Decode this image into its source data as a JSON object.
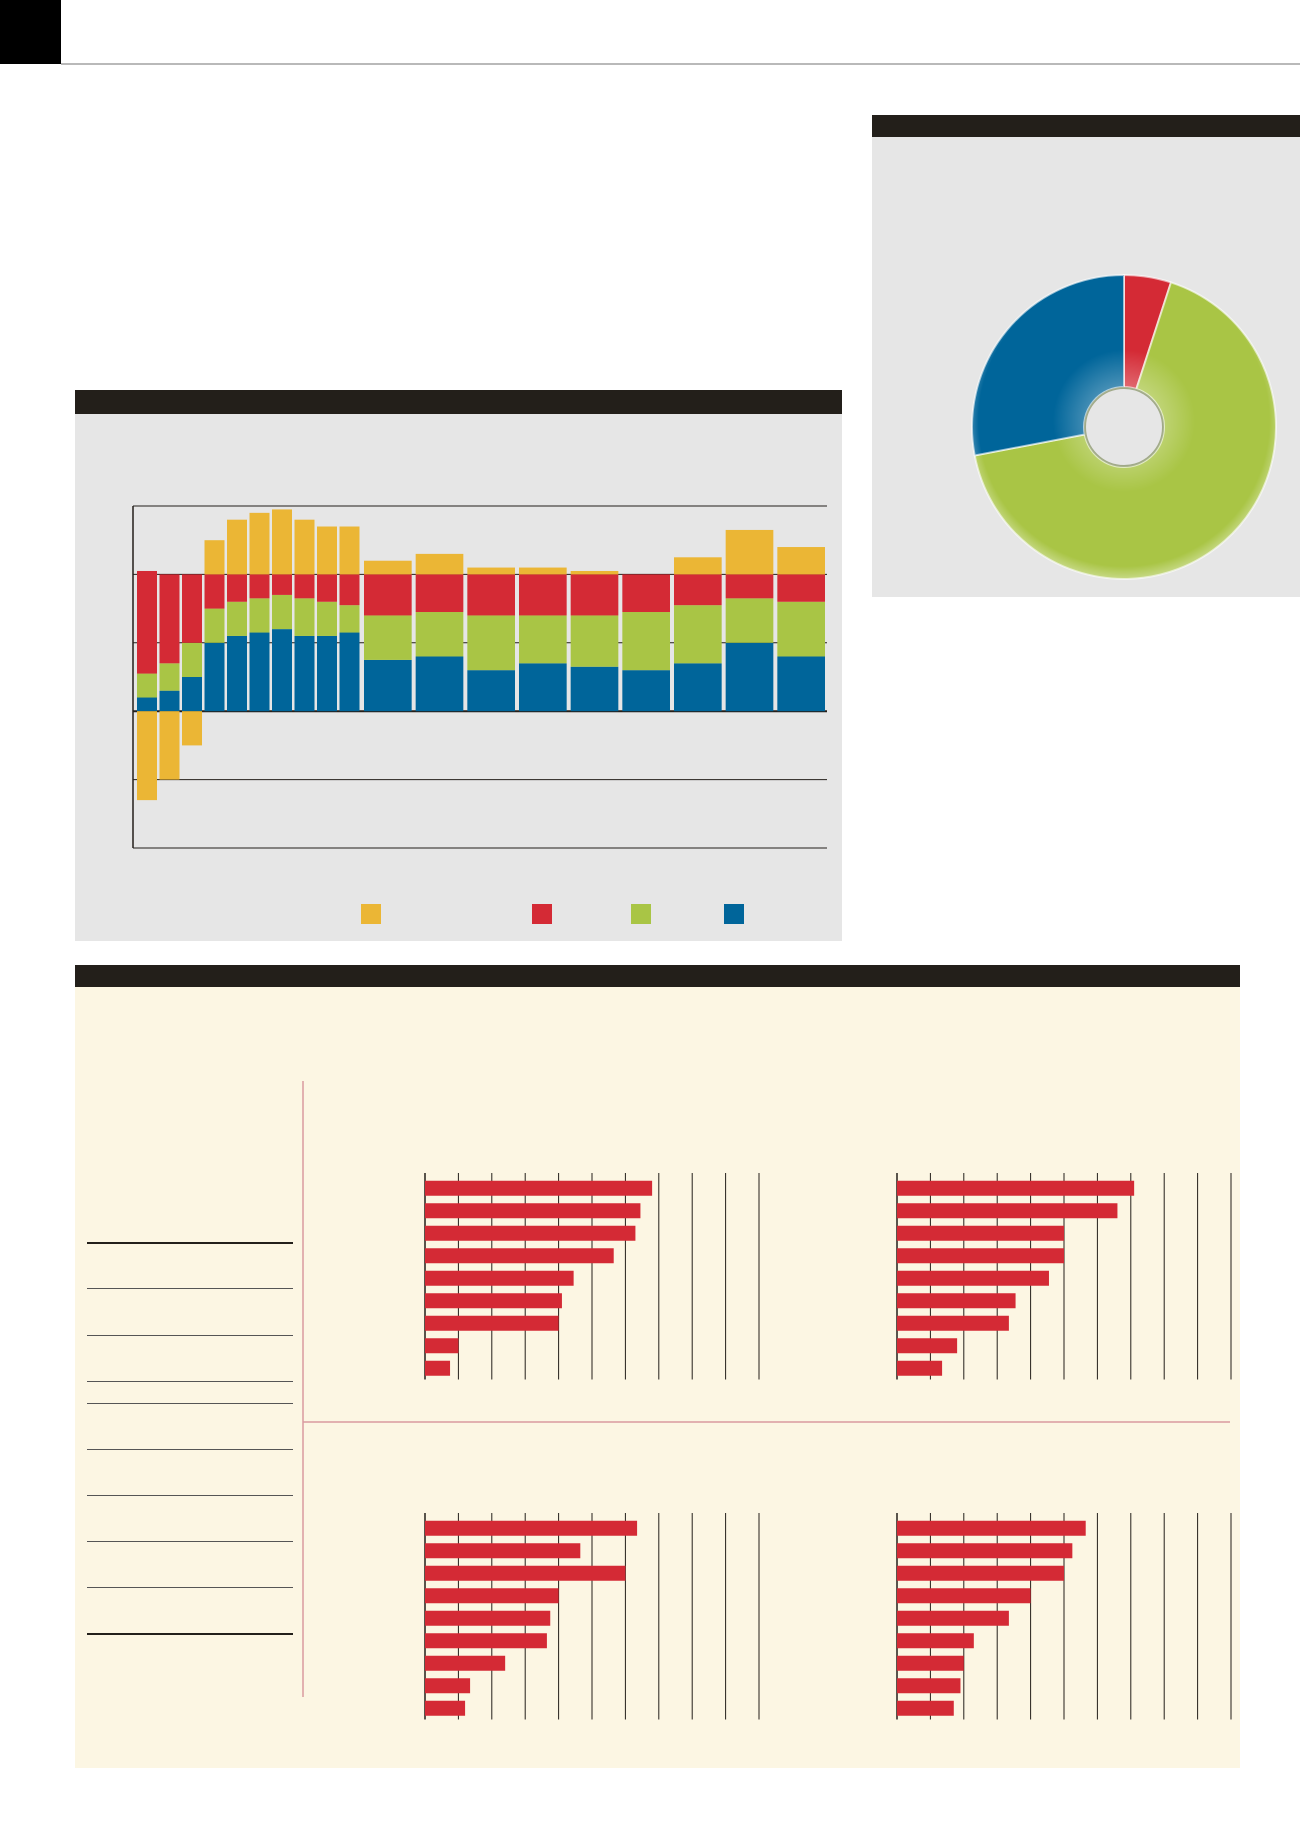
{
  "colors": {
    "header_bar": "#231f1a",
    "panel_grey": "#e6e6e6",
    "panel_cream": "#fcf6e3",
    "yellow": "#ebb635",
    "red": "#d42a35",
    "green": "#a9c545",
    "blue": "#00659a"
  },
  "chart_data": [
    {
      "type": "pie",
      "style": "donut",
      "slices": [
        {
          "color": "red",
          "value": 5
        },
        {
          "color": "green",
          "value": 67
        },
        {
          "color": "blue",
          "value": 28
        }
      ]
    },
    {
      "type": "bar",
      "stacked": true,
      "grid": true,
      "gridline_count": 6,
      "legend_position": "bottom",
      "series_colors": [
        "yellow",
        "red",
        "green",
        "blue"
      ],
      "columns": [
        {
          "blue": 0.2,
          "green": 0.35,
          "red": 1.5,
          "yellow": -1.3
        },
        {
          "blue": 0.3,
          "green": 0.4,
          "red": 1.3,
          "yellow": -1.0
        },
        {
          "blue": 0.5,
          "green": 0.5,
          "red": 1.0,
          "yellow": -0.5
        },
        {
          "blue": 1.0,
          "green": 0.5,
          "red": 0.5,
          "yellow": 0.5
        },
        {
          "blue": 1.1,
          "green": 0.5,
          "red": 0.4,
          "yellow": 0.8
        },
        {
          "blue": 1.15,
          "green": 0.5,
          "red": 0.35,
          "yellow": 0.9
        },
        {
          "blue": 1.2,
          "green": 0.5,
          "red": 0.3,
          "yellow": 0.95
        },
        {
          "blue": 1.1,
          "green": 0.55,
          "red": 0.35,
          "yellow": 0.8
        },
        {
          "blue": 1.1,
          "green": 0.5,
          "red": 0.4,
          "yellow": 0.7
        },
        {
          "blue": 1.15,
          "green": 0.4,
          "red": 0.45,
          "yellow": 0.7
        },
        {
          "blue": 0.75,
          "green": 0.65,
          "red": 0.6,
          "yellow": 0.2
        },
        {
          "blue": 0.8,
          "green": 0.65,
          "red": 0.55,
          "yellow": 0.3
        },
        {
          "blue": 0.6,
          "green": 0.8,
          "red": 0.6,
          "yellow": 0.1
        },
        {
          "blue": 0.7,
          "green": 0.7,
          "red": 0.6,
          "yellow": 0.1
        },
        {
          "blue": 0.65,
          "green": 0.75,
          "red": 0.6,
          "yellow": 0.05
        },
        {
          "blue": 0.6,
          "green": 0.85,
          "red": 0.55,
          "yellow": 0.0
        },
        {
          "blue": 0.7,
          "green": 0.85,
          "red": 0.45,
          "yellow": 0.25
        },
        {
          "blue": 1.0,
          "green": 0.65,
          "red": 0.35,
          "yellow": 0.65
        },
        {
          "blue": 0.8,
          "green": 0.8,
          "red": 0.4,
          "yellow": 0.4
        }
      ],
      "ylim": [
        -2,
        3
      ]
    },
    {
      "type": "bar",
      "orientation": "horizontal",
      "color": "red",
      "grid": true,
      "panels": [
        {
          "values": [
            6.8,
            6.45,
            6.3,
            5.65,
            4.45,
            4.1,
            4.0,
            1.0,
            0.75
          ],
          "xlim": [
            0,
            10
          ]
        },
        {
          "values": [
            7.1,
            6.6,
            5.0,
            5.0,
            4.55,
            3.55,
            3.35,
            1.8,
            1.35
          ],
          "xlim": [
            0,
            10
          ]
        },
        {
          "values": [
            6.35,
            4.65,
            6.0,
            4.0,
            3.75,
            3.65,
            2.4,
            1.35,
            1.2
          ],
          "xlim": [
            0,
            10
          ]
        },
        {
          "values": [
            5.65,
            5.25,
            5.0,
            4.0,
            3.35,
            2.3,
            2.0,
            1.9,
            1.7
          ],
          "xlim": [
            0,
            10
          ]
        }
      ]
    }
  ]
}
